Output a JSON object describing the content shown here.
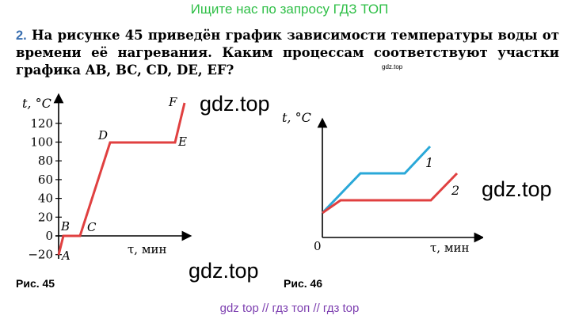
{
  "header": {
    "text": "Ищите нас по запросу ГДЗ ТОП"
  },
  "task": {
    "number": "2.",
    "text": "На рисунке 45 приведён график зависимости температуры воды от времени её нагревания. Каким процессам соответствуют участки графика AB, BC, CD, DE, EF?"
  },
  "small_watermark": "gdz.top",
  "watermarks": [
    "gdz.top",
    "gdz.top",
    "gdz.top"
  ],
  "figure45": {
    "caption": "Рис. 45",
    "ylabel": "t, °C",
    "xlabel": "τ, мин",
    "yticks": [
      "120",
      "100",
      "80",
      "60",
      "40",
      "20",
      "0",
      "−20"
    ],
    "points": [
      "A",
      "B",
      "C",
      "D",
      "E",
      "F"
    ],
    "line_color": "#e04040"
  },
  "chart_data": [
    {
      "type": "line",
      "title": "",
      "xlabel": "τ, мин",
      "ylabel": "t, °C",
      "ylim": [
        -20,
        130
      ],
      "yticks": [
        -20,
        0,
        20,
        40,
        60,
        80,
        100,
        120
      ],
      "series": [
        {
          "points": [
            {
              "label": "A",
              "y": -20
            },
            {
              "label": "B",
              "y": 0
            },
            {
              "label": "C",
              "y": 0
            },
            {
              "label": "D",
              "y": 100
            },
            {
              "label": "E",
              "y": 100
            },
            {
              "label": "F",
              "y": 140
            }
          ]
        }
      ]
    },
    {
      "type": "line",
      "title": "",
      "xlabel": "τ, мин",
      "ylabel": "t, °C",
      "origin_label": "0",
      "series": [
        {
          "name": "1",
          "color": "#2aa8d8"
        },
        {
          "name": "2",
          "color": "#e04040"
        }
      ]
    }
  ],
  "figure46": {
    "caption": "Рис. 46",
    "ylabel": "t, °C",
    "xlabel": "τ, мин",
    "origin": "0",
    "curve1_label": "1",
    "curve2_label": "2",
    "curve1_color": "#2aa8d8",
    "curve2_color": "#e04040"
  },
  "footer": {
    "text": "gdz top  //  гдз топ  //  гдз top"
  }
}
